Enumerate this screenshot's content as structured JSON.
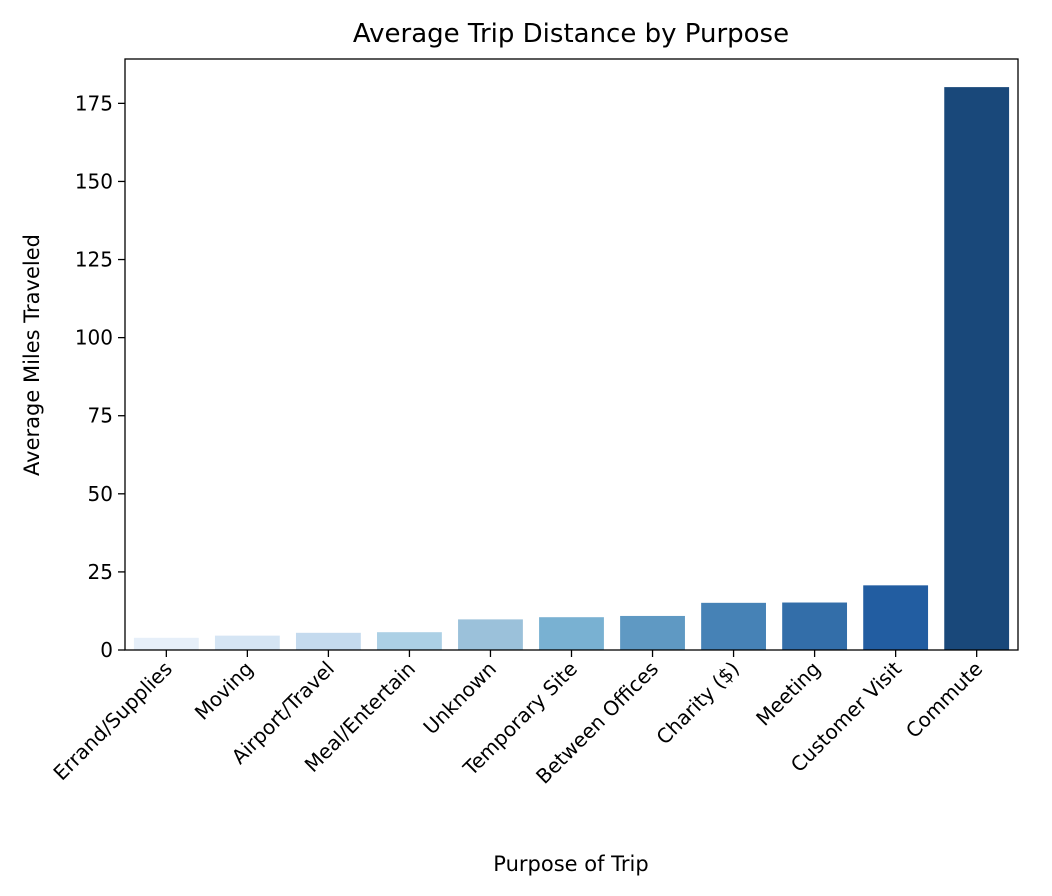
{
  "chart_data": {
    "type": "bar",
    "title": "Average Trip Distance by Purpose",
    "xlabel": "Purpose of Trip",
    "ylabel": "Average Miles Traveled",
    "categories": [
      "Errand/Supplies",
      "Moving",
      "Airport/Travel",
      "Meal/Entertain",
      "Unknown",
      "Temporary Site",
      "Between Offices",
      "Charity ($)",
      "Meeting",
      "Customer Visit",
      "Commute"
    ],
    "values": [
      3.9,
      4.6,
      5.5,
      5.7,
      9.8,
      10.5,
      10.9,
      15.1,
      15.2,
      20.7,
      180.2
    ],
    "colors": [
      "#e6eff9",
      "#d5e5f4",
      "#c4daee",
      "#acd0e5",
      "#9bc1da",
      "#79b1d2",
      "#5f99c3",
      "#4682b6",
      "#336ea9",
      "#225da1",
      "#19487a"
    ],
    "yticks": [
      0,
      25,
      50,
      75,
      100,
      125,
      150,
      175
    ],
    "ylim": [
      0,
      189.2
    ],
    "grid": false,
    "legend": "none"
  }
}
